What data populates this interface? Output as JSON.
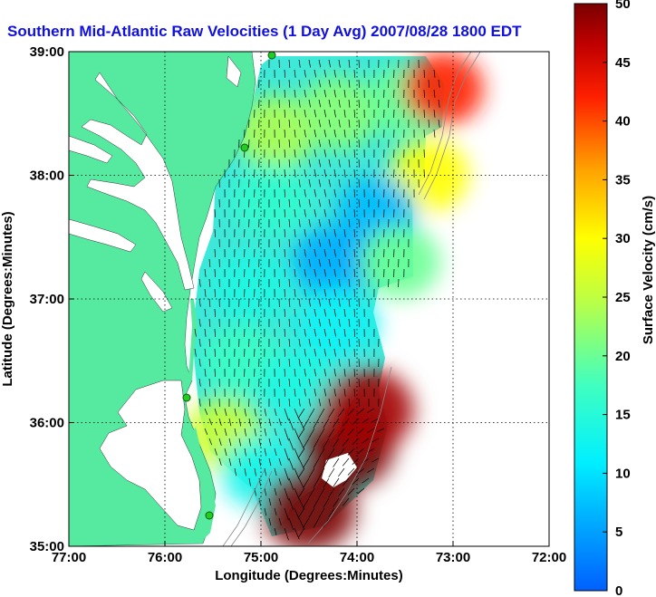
{
  "chart_data": {
    "type": "heatmap",
    "title": "Southern Mid-Atlantic Raw Velocities (1 Day Avg) 2007/08/28 1800 EDT",
    "xlabel": "Longitude (Degrees:Minutes)",
    "ylabel": "Latitude (Degrees:Minutes)",
    "xlim": [
      -77,
      -72
    ],
    "ylim": [
      35,
      39
    ],
    "x_ticks": [
      {
        "value": -77,
        "label": "77:00"
      },
      {
        "value": -76,
        "label": "76:00"
      },
      {
        "value": -75,
        "label": "75:00"
      },
      {
        "value": -74,
        "label": "74:00"
      },
      {
        "value": -73,
        "label": "73:00"
      },
      {
        "value": -72,
        "label": "72:00"
      }
    ],
    "y_ticks": [
      {
        "value": 35,
        "label": "35:00"
      },
      {
        "value": 36,
        "label": "36:00"
      },
      {
        "value": 37,
        "label": "37:00"
      },
      {
        "value": 38,
        "label": "38:00"
      },
      {
        "value": 39,
        "label": "39:00"
      }
    ],
    "grid": true,
    "colorbar": {
      "label": "Surface Velocity (cm/s)",
      "range": [
        0,
        50
      ],
      "ticks": [
        {
          "value": 0,
          "label": "0"
        },
        {
          "value": 5,
          "label": "5"
        },
        {
          "value": 10,
          "label": "10"
        },
        {
          "value": 15,
          "label": "15"
        },
        {
          "value": 20,
          "label": "20"
        },
        {
          "value": 25,
          "label": "25"
        },
        {
          "value": 30,
          "label": "30"
        },
        {
          "value": 35,
          "label": "35"
        },
        {
          "value": 40,
          "label": "40"
        },
        {
          "value": 45,
          "label": "45"
        },
        {
          "value": 50,
          "label": "50"
        }
      ],
      "colormap": "jet"
    },
    "land_color": "#55eaa0",
    "field_regions": [
      {
        "lon": -74.85,
        "lat": 38.35,
        "speed": 24
      },
      {
        "lon": -74.2,
        "lat": 38.5,
        "speed": 22
      },
      {
        "lon": -73.5,
        "lat": 38.6,
        "speed": 20
      },
      {
        "lon": -73.1,
        "lat": 38.7,
        "speed": 42
      },
      {
        "lon": -73.25,
        "lat": 38.0,
        "speed": 30
      },
      {
        "lon": -74.9,
        "lat": 37.8,
        "speed": 16
      },
      {
        "lon": -73.8,
        "lat": 37.7,
        "speed": 7
      },
      {
        "lon": -74.25,
        "lat": 37.3,
        "speed": 6
      },
      {
        "lon": -73.55,
        "lat": 37.3,
        "speed": 20
      },
      {
        "lon": -75.1,
        "lat": 37.1,
        "speed": 14
      },
      {
        "lon": -74.2,
        "lat": 36.8,
        "speed": 12
      },
      {
        "lon": -75.2,
        "lat": 36.5,
        "speed": 17
      },
      {
        "lon": -74.6,
        "lat": 36.3,
        "speed": 14
      },
      {
        "lon": -75.4,
        "lat": 35.9,
        "speed": 26
      },
      {
        "lon": -75.0,
        "lat": 35.6,
        "speed": 13
      },
      {
        "lon": -74.1,
        "lat": 35.8,
        "speed": 50
      },
      {
        "lon": -74.5,
        "lat": 35.3,
        "speed": 50
      },
      {
        "lon": -73.9,
        "lat": 36.1,
        "speed": 48
      }
    ]
  }
}
